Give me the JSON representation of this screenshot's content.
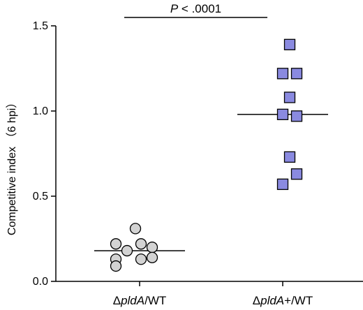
{
  "chart_data": {
    "type": "scatter",
    "title": "",
    "ylabel": "Competitive index （6 hpi）",
    "xlabel": "",
    "ylim": [
      0,
      1.5
    ],
    "yticks": [
      0.0,
      0.5,
      1.0,
      1.5
    ],
    "ytick_labels": [
      "0.0",
      "0.5",
      "1.0",
      "1.5"
    ],
    "grid": false,
    "legend": "none",
    "categories": [
      {
        "prefix": "Δ",
        "italic": "pldA",
        "suffix": "/WT"
      },
      {
        "prefix": "Δ",
        "italic": "pldA",
        "suffix": "+/WT"
      }
    ],
    "series": [
      {
        "category_index": 0,
        "marker": "circle",
        "color": "#d3d3d3",
        "median": 0.18,
        "points": [
          {
            "dx": -0.85,
            "y": 0.22
          },
          {
            "dx": -0.85,
            "y": 0.13
          },
          {
            "dx": -0.85,
            "y": 0.09
          },
          {
            "dx": -0.45,
            "y": 0.18
          },
          {
            "dx": -0.15,
            "y": 0.31
          },
          {
            "dx": 0.05,
            "y": 0.22
          },
          {
            "dx": 0.05,
            "y": 0.13
          },
          {
            "dx": 0.45,
            "y": 0.2
          },
          {
            "dx": 0.45,
            "y": 0.14
          }
        ]
      },
      {
        "category_index": 1,
        "marker": "square",
        "color": "#8a8ae0",
        "median": 0.98,
        "points": [
          {
            "dx": 0.25,
            "y": 1.39
          },
          {
            "dx": 0.0,
            "y": 1.22
          },
          {
            "dx": 0.5,
            "y": 1.22
          },
          {
            "dx": 0.25,
            "y": 1.08
          },
          {
            "dx": 0.0,
            "y": 0.98
          },
          {
            "dx": 0.5,
            "y": 0.97
          },
          {
            "dx": 0.25,
            "y": 0.73
          },
          {
            "dx": 0.5,
            "y": 0.63
          },
          {
            "dx": 0.0,
            "y": 0.57
          }
        ]
      }
    ],
    "significance": {
      "p_letter": "P",
      "text": " < .0001",
      "between": [
        0,
        1
      ]
    }
  }
}
